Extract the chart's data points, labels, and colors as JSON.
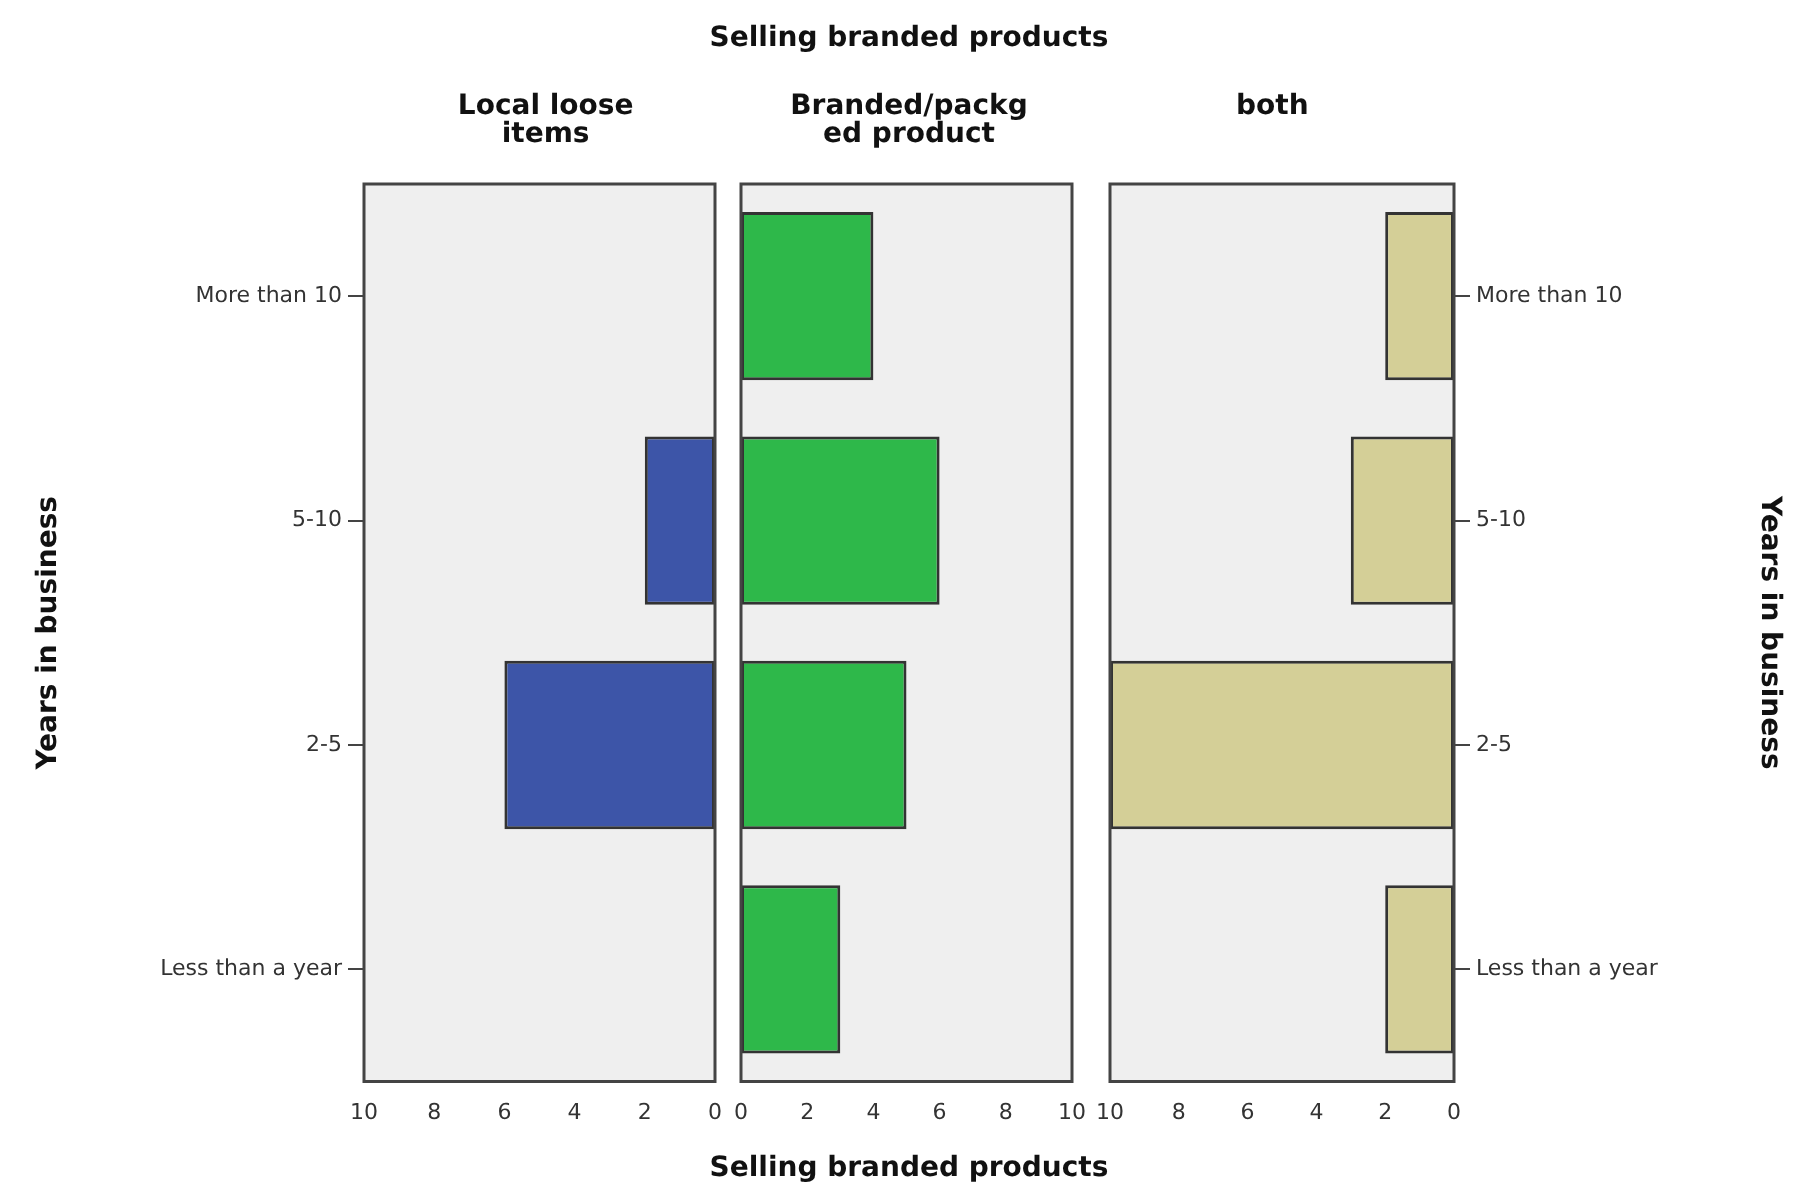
{
  "chart_data": [
    {
      "type": "bar",
      "orientation": "horizontal",
      "title": "Local loose items",
      "ylabel": "Years in business",
      "categories": [
        "More than 10",
        "5-10",
        "2-5",
        "Less than a year"
      ],
      "values": [
        0,
        2,
        6,
        0
      ],
      "color": "#3d55a8",
      "xlim": [
        10,
        0
      ],
      "xticks": [
        10,
        8,
        6,
        4,
        2,
        0
      ],
      "grid": false,
      "legend": false
    },
    {
      "type": "bar",
      "orientation": "horizontal",
      "title": "Branded/packged product",
      "subtitle": "Selling branded products",
      "xlabel": "Selling branded products",
      "categories": [
        null,
        null,
        null,
        null
      ],
      "values": [
        4,
        6,
        5,
        3
      ],
      "color": "#2eb84a",
      "xlim": [
        0,
        10
      ],
      "xticks": [
        0,
        2,
        4,
        6,
        8,
        10
      ],
      "grid": false,
      "legend": false,
      "tick_labels": "x"
    },
    {
      "type": "bar",
      "orientation": "horizontal",
      "title": "both",
      "ylabel": "Years in business",
      "categories": [
        "More than 10",
        "5-10",
        "2-5",
        "Less than a year"
      ],
      "values": [
        2,
        3,
        10,
        2
      ],
      "color": "#d4cf97",
      "xlim": [
        10,
        0
      ],
      "xticks": [
        10,
        8,
        6,
        4,
        2,
        0
      ],
      "grid": false,
      "legend": false
    }
  ]
}
